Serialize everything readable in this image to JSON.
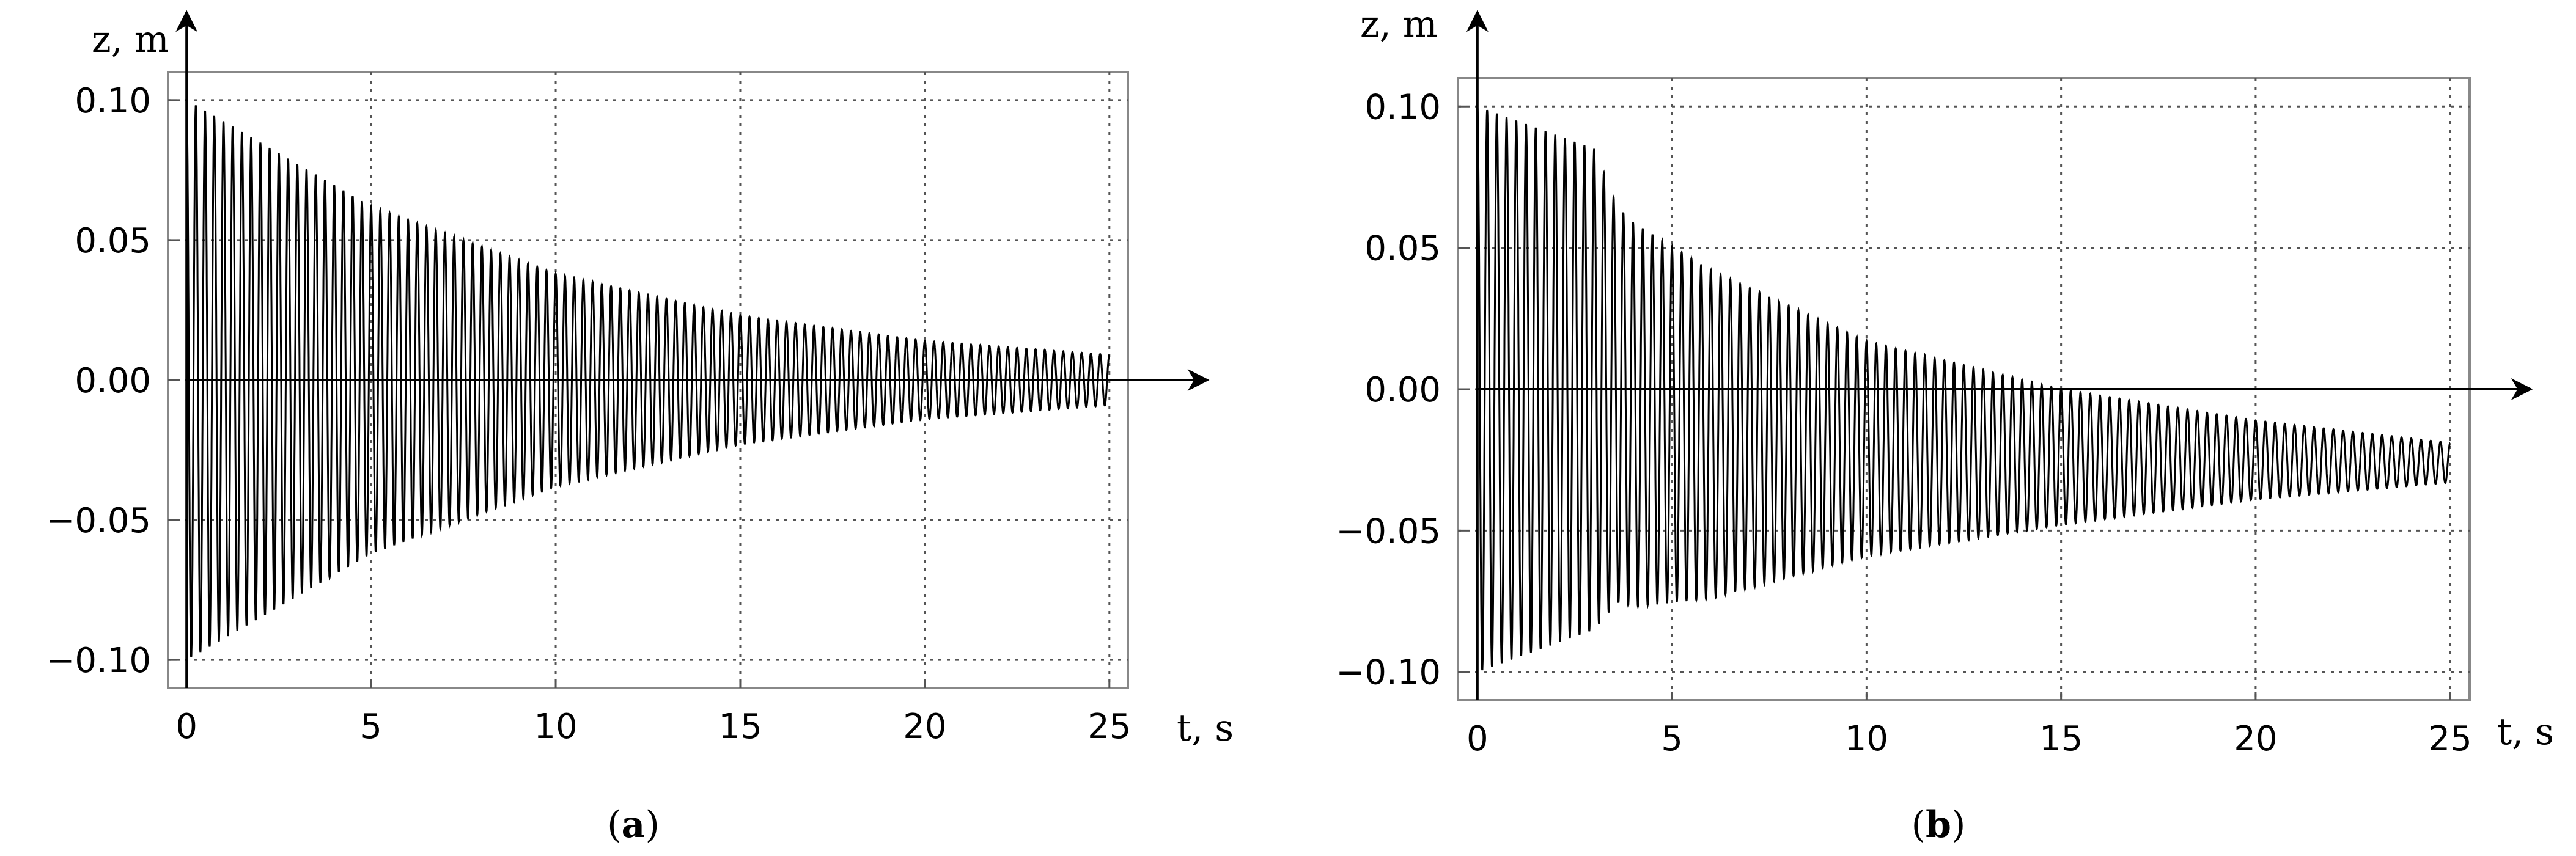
{
  "chart_data": [
    {
      "type": "line",
      "caption_open": "(",
      "caption_letter": "a",
      "caption_close": ")",
      "xlabel": "t, s",
      "ylabel": "z, m",
      "xlim": [
        -0.5,
        25.5
      ],
      "ylim": [
        -0.11,
        0.11
      ],
      "xticks": [
        0,
        5,
        10,
        15,
        20,
        25
      ],
      "xtick_labels": [
        "0",
        "5",
        "10",
        "15",
        "20",
        "25"
      ],
      "yticks": [
        -0.1,
        -0.05,
        0.0,
        0.05,
        0.1
      ],
      "ytick_labels": [
        "−0.10",
        "−0.05",
        "0.00",
        "0.05",
        "0.10"
      ],
      "grid": true,
      "grid_style": "dotted",
      "signal": {
        "description_type": "damped_oscillation",
        "t_start": 0,
        "t_end": 25,
        "frequency_hz": 4,
        "offset_points": [
          [
            0,
            0.0
          ],
          [
            25,
            0.0
          ]
        ],
        "amplitude_points": [
          [
            0,
            0.1
          ],
          [
            5,
            0.062
          ],
          [
            10,
            0.038
          ],
          [
            15,
            0.023
          ],
          [
            20,
            0.014
          ],
          [
            25,
            0.009
          ]
        ]
      },
      "series_color": "#000000"
    },
    {
      "type": "line",
      "caption_open": "(",
      "caption_letter": "b",
      "caption_close": ")",
      "xlabel": "t, s",
      "ylabel": "z, m",
      "xlim": [
        -0.5,
        25.5
      ],
      "ylim": [
        -0.11,
        0.11
      ],
      "xticks": [
        0,
        5,
        10,
        15,
        20,
        25
      ],
      "xtick_labels": [
        "0",
        "5",
        "10",
        "15",
        "20",
        "25"
      ],
      "yticks": [
        -0.1,
        -0.05,
        0.0,
        0.05,
        0.1
      ],
      "ytick_labels": [
        "−0.10",
        "−0.05",
        "0.00",
        "0.05",
        "0.10"
      ],
      "grid": true,
      "grid_style": "dotted",
      "signal": {
        "description_type": "damped_oscillation_with_offset_shift",
        "t_start": 0,
        "t_end": 25,
        "frequency_hz": 4,
        "offset_points": [
          [
            0,
            0.0
          ],
          [
            3,
            0.0
          ],
          [
            4,
            -0.009
          ],
          [
            6,
            -0.016
          ],
          [
            10,
            -0.021
          ],
          [
            15,
            -0.024
          ],
          [
            20,
            -0.025
          ],
          [
            25,
            -0.026
          ]
        ],
        "amplitude_points": [
          [
            0,
            0.1
          ],
          [
            3,
            0.085
          ],
          [
            3.6,
            0.07
          ],
          [
            5,
            0.063
          ],
          [
            10,
            0.038
          ],
          [
            15,
            0.024
          ],
          [
            20,
            0.014
          ],
          [
            25,
            0.007
          ]
        ]
      },
      "series_color": "#000000"
    }
  ]
}
